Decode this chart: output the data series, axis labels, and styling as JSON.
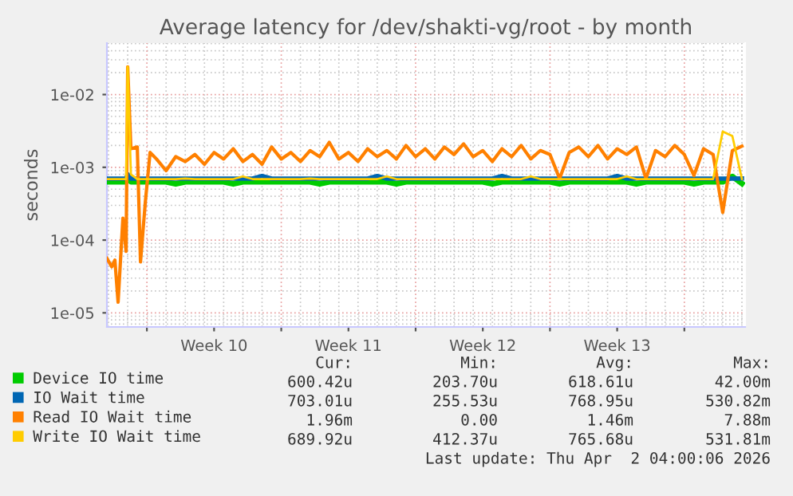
{
  "chart_data": {
    "type": "line",
    "title": "Average latency for /dev/shakti-vg/root - by month",
    "ylabel": "seconds",
    "x": [
      "2026-02-27T22:00",
      "2026-02-28T04:00",
      "2026-02-28T08:00",
      "2026-02-28T12:00",
      "2026-02-28T18:00",
      "2026-02-28T22:00",
      "2026-03-01T00:00",
      "2026-03-01T04:00",
      "2026-03-01T12:00",
      "2026-03-01T16:00",
      "2026-03-01T22:00",
      "2026-03-02T04:00",
      "2026-03-02T12:00",
      "2026-03-03T00:00",
      "2026-03-03T12:00",
      "2026-03-04T00:00",
      "2026-03-04T12:00",
      "2026-03-05T00:00",
      "2026-03-05T12:00",
      "2026-03-06T00:00",
      "2026-03-06T12:00",
      "2026-03-07T00:00",
      "2026-03-07T12:00",
      "2026-03-08T00:00",
      "2026-03-08T12:00",
      "2026-03-09T00:00",
      "2026-03-09T12:00",
      "2026-03-10T00:00",
      "2026-03-10T12:00",
      "2026-03-11T00:00",
      "2026-03-11T12:00",
      "2026-03-12T00:00",
      "2026-03-12T12:00",
      "2026-03-13T00:00",
      "2026-03-13T12:00",
      "2026-03-14T00:00",
      "2026-03-14T12:00",
      "2026-03-15T00:00",
      "2026-03-15T12:00",
      "2026-03-16T00:00",
      "2026-03-16T12:00",
      "2026-03-17T00:00",
      "2026-03-17T12:00",
      "2026-03-18T00:00",
      "2026-03-18T12:00",
      "2026-03-19T00:00",
      "2026-03-19T12:00",
      "2026-03-20T00:00",
      "2026-03-20T12:00",
      "2026-03-21T00:00",
      "2026-03-21T12:00",
      "2026-03-22T00:00",
      "2026-03-22T12:00",
      "2026-03-23T00:00",
      "2026-03-23T12:00",
      "2026-03-24T00:00",
      "2026-03-24T12:00",
      "2026-03-25T00:00",
      "2026-03-25T12:00",
      "2026-03-26T00:00",
      "2026-03-26T12:00",
      "2026-03-27T00:00",
      "2026-03-27T12:00",
      "2026-03-28T00:00",
      "2026-03-28T12:00",
      "2026-03-29T00:00",
      "2026-03-29T12:00",
      "2026-03-30T00:00",
      "2026-03-30T12:00",
      "2026-03-31T00:00",
      "2026-03-31T12:00",
      "2026-04-01T00:00",
      "2026-04-01T12:00",
      "2026-04-02T00:00"
    ],
    "series": [
      {
        "name": "Device IO time",
        "color": "#00cc00",
        "values": [
          0.00063,
          0.00063,
          0.00063,
          0.00063,
          0.00063,
          0.00063,
          0.00075,
          0.00063,
          0.00063,
          0.00063,
          0.00063,
          0.00063,
          0.00063,
          0.00063,
          0.00059,
          0.00063,
          0.00063,
          0.00063,
          0.00063,
          0.00063,
          0.00059,
          0.00063,
          0.00063,
          0.00063,
          0.00063,
          0.00063,
          0.00063,
          0.00063,
          0.00063,
          0.00059,
          0.00063,
          0.00063,
          0.00063,
          0.00063,
          0.00063,
          0.00063,
          0.00063,
          0.00059,
          0.00063,
          0.00063,
          0.00063,
          0.00063,
          0.00063,
          0.00063,
          0.00063,
          0.00063,
          0.00063,
          0.00059,
          0.00063,
          0.00063,
          0.00063,
          0.00063,
          0.00063,
          0.00063,
          0.00059,
          0.00063,
          0.00063,
          0.00063,
          0.00063,
          0.00063,
          0.00063,
          0.00063,
          0.00059,
          0.00063,
          0.00063,
          0.00063,
          0.00063,
          0.00063,
          0.00059,
          0.00063,
          0.00063,
          0.00063,
          0.00075,
          0.0006
        ]
      },
      {
        "name": "IO Wait time",
        "color": "#0066b3",
        "values": [
          0.0007,
          0.0007,
          0.0007,
          0.0007,
          0.0007,
          0.0007,
          0.0008,
          0.0007,
          0.0007,
          0.0007,
          0.0007,
          0.0007,
          0.0007,
          0.0007,
          0.0007,
          0.0007,
          0.0007,
          0.0007,
          0.0007,
          0.0007,
          0.0007,
          0.0007,
          0.0007,
          0.00076,
          0.0007,
          0.0007,
          0.0007,
          0.0007,
          0.0007,
          0.0007,
          0.0007,
          0.0007,
          0.0007,
          0.0007,
          0.0007,
          0.00076,
          0.0007,
          0.0007,
          0.0007,
          0.0007,
          0.0007,
          0.0007,
          0.0007,
          0.0007,
          0.0007,
          0.0007,
          0.0007,
          0.0007,
          0.00076,
          0.0007,
          0.0007,
          0.0007,
          0.0007,
          0.0007,
          0.0007,
          0.0007,
          0.0007,
          0.0007,
          0.0007,
          0.0007,
          0.00076,
          0.0007,
          0.0007,
          0.0007,
          0.0007,
          0.0007,
          0.0007,
          0.0007,
          0.0007,
          0.0007,
          0.0007,
          0.0007,
          0.0007,
          0.000703
        ]
      },
      {
        "name": "Read IO Wait time",
        "color": "#ff8000",
        "values": [
          5.6e-05,
          4.3e-05,
          5.3e-05,
          1.4e-05,
          0.0002,
          7e-05,
          0.024,
          0.0018,
          0.0019,
          5e-05,
          0.00033,
          0.0016,
          0.0013,
          0.0009,
          0.0014,
          0.0012,
          0.0015,
          0.0011,
          0.0016,
          0.0013,
          0.0018,
          0.0012,
          0.0015,
          0.0011,
          0.0019,
          0.0013,
          0.0016,
          0.0012,
          0.0017,
          0.0014,
          0.0022,
          0.0013,
          0.0016,
          0.0012,
          0.0018,
          0.0014,
          0.0017,
          0.0013,
          0.002,
          0.0014,
          0.0018,
          0.0013,
          0.0019,
          0.0015,
          0.0021,
          0.0014,
          0.0017,
          0.0012,
          0.0018,
          0.0014,
          0.002,
          0.0013,
          0.0017,
          0.0015,
          0.0007,
          0.0016,
          0.0019,
          0.0014,
          0.002,
          0.0013,
          0.0018,
          0.0015,
          0.0019,
          0.0007,
          0.0017,
          0.0014,
          0.002,
          0.0015,
          0.00077,
          0.0018,
          0.0015,
          0.00024,
          0.0017,
          0.00196
        ]
      },
      {
        "name": "Write IO Wait time",
        "color": "#ffcc00",
        "values": [
          0.00069,
          0.00069,
          0.00069,
          0.00069,
          0.00069,
          0.00069,
          0.024,
          0.0008,
          0.00069,
          0.00069,
          0.00069,
          0.00069,
          0.00069,
          0.00069,
          0.00069,
          0.0007,
          0.00069,
          0.00069,
          0.00069,
          0.00069,
          0.00069,
          0.00075,
          0.00069,
          0.00069,
          0.00069,
          0.00069,
          0.00069,
          0.00069,
          0.0007,
          0.00069,
          0.00069,
          0.00069,
          0.00069,
          0.00069,
          0.00069,
          0.00069,
          0.00075,
          0.00069,
          0.00069,
          0.00069,
          0.00069,
          0.00069,
          0.00069,
          0.00069,
          0.00069,
          0.00069,
          0.00069,
          0.00069,
          0.00069,
          0.00069,
          0.00069,
          0.00075,
          0.00069,
          0.00069,
          0.00069,
          0.00069,
          0.00069,
          0.00069,
          0.00069,
          0.00069,
          0.00069,
          0.00075,
          0.00069,
          0.00069,
          0.00069,
          0.00069,
          0.00069,
          0.00069,
          0.00069,
          0.00069,
          0.00069,
          0.0031,
          0.0027,
          0.00069
        ]
      }
    ],
    "log": "y",
    "xlim": [
      "2026-02-27T22:00",
      "2026-04-02T04:00"
    ],
    "xticks": [
      {
        "value": "2026-03-02T00:00",
        "label": null
      },
      {
        "value": "2026-03-05T12:00",
        "label": "Week 10"
      },
      {
        "value": "2026-03-09T00:00",
        "label": null
      },
      {
        "value": "2026-03-12T12:00",
        "label": "Week 11"
      },
      {
        "value": "2026-03-16T00:00",
        "label": null
      },
      {
        "value": "2026-03-19T12:00",
        "label": "Week 12"
      },
      {
        "value": "2026-03-23T00:00",
        "label": null
      },
      {
        "value": "2026-03-26T12:00",
        "label": "Week 13"
      },
      {
        "value": "2026-03-30T00:00",
        "label": null
      }
    ],
    "ylim": [
      6.4e-06,
      0.051
    ],
    "yticks": [
      {
        "value": 1e-05,
        "label": "1e-05"
      },
      {
        "value": 0.0001,
        "label": "1e-04"
      },
      {
        "value": 0.001,
        "label": "1e-03"
      },
      {
        "value": 0.01,
        "label": "1e-02"
      }
    ],
    "grid": true,
    "legend": "bottom left",
    "marker": "none",
    "line_style": "solid",
    "annotations": [
      "Cur:",
      "Min:",
      "Avg:",
      "Max:",
      "600.42u",
      "203.70u",
      "618.61u",
      "42.00m",
      "703.01u",
      "255.53u",
      "768.95u",
      "530.82m",
      "1.96m",
      "0.00",
      "1.46m",
      "7.88m",
      "689.92u",
      "412.37u",
      "765.68u",
      "531.81m",
      "Last update: Thu Apr  2 04:00:06 2026"
    ]
  }
}
